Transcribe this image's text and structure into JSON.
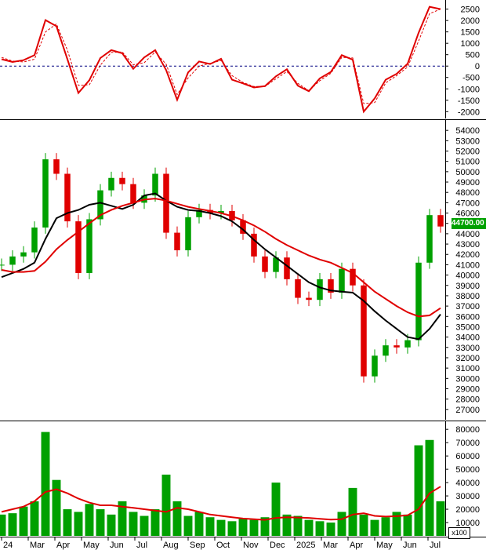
{
  "chart_data": [
    {
      "type": "line",
      "title": "",
      "ylim": [
        -2300,
        2900
      ],
      "yticks": [
        2500,
        2000,
        1500,
        1000,
        500,
        0,
        -500,
        -1000,
        -1500,
        -2000
      ],
      "zero_line": "dashed",
      "series": [
        {
          "color": "#e00000",
          "style": "solid",
          "values": [
            300,
            180,
            260,
            480,
            2020,
            1750,
            300,
            -1180,
            -620,
            350,
            700,
            560,
            -120,
            380,
            700,
            -180,
            -1480,
            -280,
            200,
            90,
            320,
            -600,
            -760,
            -940,
            -880,
            -450,
            -140,
            -860,
            -1100,
            -540,
            -260,
            480,
            280,
            -2000,
            -1420,
            -600,
            -340,
            100,
            1460,
            2600,
            2500
          ]
        },
        {
          "color": "#e00000",
          "style": "dashed",
          "values": [
            380,
            220,
            180,
            300,
            1500,
            1850,
            700,
            -850,
            -820,
            40,
            600,
            620,
            60,
            150,
            620,
            80,
            -1250,
            -520,
            0,
            120,
            240,
            -420,
            -720,
            -900,
            -900,
            -560,
            -240,
            -760,
            -1080,
            -640,
            -320,
            380,
            360,
            -1650,
            -1600,
            -740,
            -420,
            -40,
            1100,
            2300,
            2500
          ]
        }
      ]
    },
    {
      "type": "candlestick",
      "title": "",
      "ylim": [
        26000,
        55000
      ],
      "yticks": [
        54000,
        53000,
        52000,
        51000,
        50000,
        49000,
        48000,
        47000,
        46000,
        45000,
        44000,
        43000,
        42000,
        41000,
        40000,
        39000,
        38000,
        37000,
        36000,
        35000,
        34000,
        33000,
        32000,
        31000,
        30000,
        29000,
        28000,
        27000
      ],
      "last_price": 44700,
      "last_price_label": "44700.00",
      "up_color": "#00a000",
      "down_color": "#e00000",
      "closes": [
        41000,
        41800,
        42200,
        44600,
        51200,
        49800,
        45200,
        40200,
        45400,
        48200,
        49400,
        48800,
        47000,
        47700,
        49800,
        44100,
        42400,
        45600,
        46300,
        46000,
        46200,
        45300,
        44000,
        41800,
        40300,
        41700,
        39600,
        37800,
        37600,
        39600,
        38300,
        40600,
        39000,
        30200,
        32200,
        33200,
        33000,
        33700,
        41200,
        45800,
        44700
      ],
      "moving_averages": [
        {
          "color": "#000000",
          "values": [
            39800,
            40200,
            40600,
            41200,
            43500,
            45500,
            46000,
            46300,
            46800,
            47000,
            46700,
            46400,
            46800,
            47700,
            47900,
            47200,
            46600,
            46300,
            46200,
            46000,
            45700,
            45200,
            44400,
            43400,
            42500,
            41700,
            40900,
            40100,
            39300,
            38800,
            38500,
            38400,
            38300,
            37500,
            36500,
            35600,
            34800,
            34000,
            33800,
            34800,
            36200
          ]
        },
        {
          "color": "#e00000",
          "values": [
            40500,
            40300,
            40300,
            40400,
            41300,
            42500,
            43400,
            44200,
            45000,
            45800,
            46300,
            46700,
            47000,
            47300,
            47400,
            47200,
            46900,
            46600,
            46400,
            46200,
            46000,
            45700,
            45300,
            44800,
            44200,
            43500,
            42900,
            42400,
            41900,
            41500,
            41200,
            40700,
            40200,
            39300,
            38400,
            37700,
            37000,
            36400,
            36000,
            36100,
            36800
          ]
        }
      ]
    },
    {
      "type": "bar",
      "title": "",
      "ylim": [
        0,
        86000
      ],
      "yticks": [
        80000,
        70000,
        60000,
        50000,
        40000,
        30000,
        20000,
        10000
      ],
      "unit_label": "x100",
      "bar_color": "#00a000",
      "x_tick_labels": [
        "24",
        "Mar",
        "Apr",
        "May",
        "Jun",
        "Jul",
        "Aug",
        "Sep",
        "Oct",
        "Nov",
        "Dec",
        "2025",
        "Mar",
        "Apr",
        "May",
        "Jun",
        "Jul"
      ],
      "values": [
        16000,
        17000,
        22000,
        26000,
        78000,
        42000,
        20000,
        18000,
        24000,
        20000,
        16000,
        26000,
        18000,
        15000,
        20000,
        46000,
        26000,
        15000,
        18000,
        14000,
        12000,
        11000,
        13000,
        12000,
        14000,
        40000,
        16000,
        15000,
        12000,
        11000,
        10000,
        18000,
        36000,
        16000,
        12000,
        14000,
        18000,
        16000,
        68000,
        72000,
        26000
      ],
      "moving_average": {
        "color": "#e00000",
        "values": [
          18000,
          20000,
          22000,
          26000,
          33000,
          35000,
          32000,
          28000,
          25000,
          23000,
          23000,
          22000,
          21000,
          20000,
          19000,
          18000,
          21000,
          20000,
          18000,
          16000,
          15000,
          14000,
          13000,
          12500,
          12000,
          13500,
          14000,
          13800,
          13500,
          12800,
          12200,
          12500,
          16000,
          17000,
          15000,
          14500,
          14800,
          15500,
          20000,
          32000,
          37000
        ]
      }
    }
  ]
}
